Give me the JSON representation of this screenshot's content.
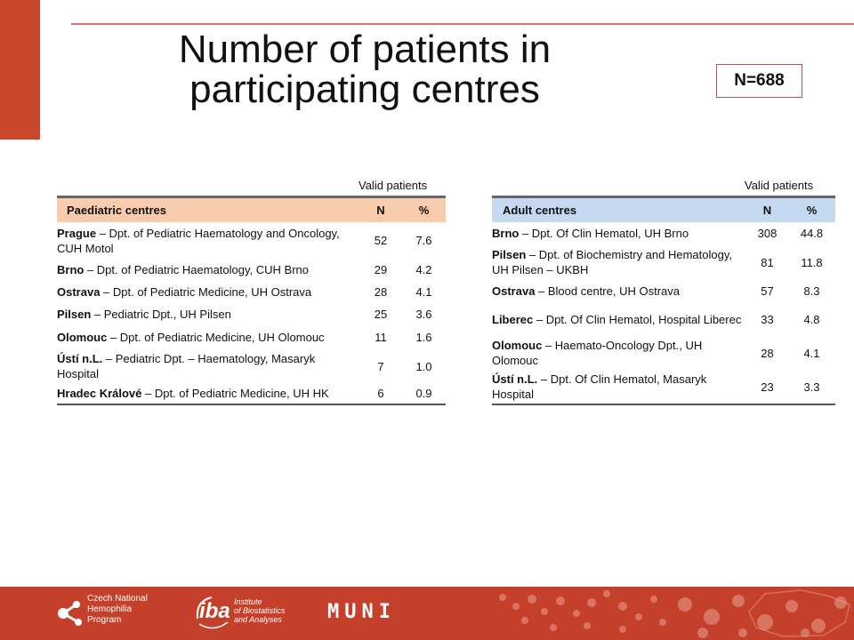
{
  "title": "Number of patients in participating centres",
  "badge": "N=688",
  "paediatric": {
    "caption": "Valid patients",
    "header": {
      "name": "Paediatric centres",
      "n": "N",
      "pct": "%"
    },
    "rows": [
      {
        "city": "Prague",
        "dept": " – Dpt. of Pediatric Haematology and Oncology, CUH Motol",
        "n": "52",
        "pct": "7.6"
      },
      {
        "city": "Brno",
        "dept": " – Dpt. of Pediatric Haematology, CUH Brno",
        "n": "29",
        "pct": "4.2"
      },
      {
        "city": "Ostrava",
        "dept": " – Dpt. of Pediatric Medicine, UH Ostrava",
        "n": "28",
        "pct": "4.1"
      },
      {
        "city": "Pilsen",
        "dept": " – Pediatric Dpt., UH Pilsen",
        "n": "25",
        "pct": "3.6"
      },
      {
        "city": "Olomouc",
        "dept": " – Dpt. of Pediatric Medicine, UH Olomouc",
        "n": "11",
        "pct": "1.6"
      },
      {
        "city": "Ústí n.L.",
        "dept": " – Pediatric Dpt. – Haematology, Masaryk Hospital",
        "n": "7",
        "pct": "1.0"
      },
      {
        "city": "Hradec Králové",
        "dept": " – Dpt. of Pediatric Medicine, UH HK",
        "n": "6",
        "pct": "0.9"
      }
    ]
  },
  "adult": {
    "caption": "Valid patients",
    "header": {
      "name": "Adult centres",
      "n": "N",
      "pct": "%"
    },
    "rows": [
      {
        "city": "Brno",
        "dept": " – Dpt. Of Clin Hematol, UH Brno",
        "n": "308",
        "pct": "44.8"
      },
      {
        "city": "Pilsen",
        "dept": " – Dpt. of Biochemistry and Hematology, UH Pilsen – UKBH",
        "n": "81",
        "pct": "11.8"
      },
      {
        "city": "Ostrava",
        "dept": " – Blood centre, UH Ostrava",
        "n": "57",
        "pct": "8.3"
      },
      {
        "city": "Liberec",
        "dept": " – Dpt. Of Clin Hematol, Hospital Liberec",
        "n": "33",
        "pct": "4.8"
      },
      {
        "city": "Olomouc",
        "dept": " – Haemato-Oncology Dpt., UH Olomouc",
        "n": "28",
        "pct": "4.1"
      },
      {
        "city": "Ústí n.L.",
        "dept": " – Dpt. Of Clin Hematol, Masaryk Hospital",
        "n": "23",
        "pct": "3.3"
      }
    ]
  },
  "footer": {
    "chnp": [
      "Czech National",
      "Hemophilia",
      "Program"
    ],
    "iba_mark": "iba",
    "iba": [
      "Institute",
      "of Biostatistics",
      "and Analyses"
    ],
    "muni": "MUNI"
  },
  "colors": {
    "accent": "#c9472a",
    "paediatric_header": "#f8cbad",
    "adult_header": "#c5d9f1"
  },
  "icons": [
    "chnp-logo-icon",
    "iba-logo-icon",
    "dots-pattern-icon",
    "map-outline-icon"
  ]
}
